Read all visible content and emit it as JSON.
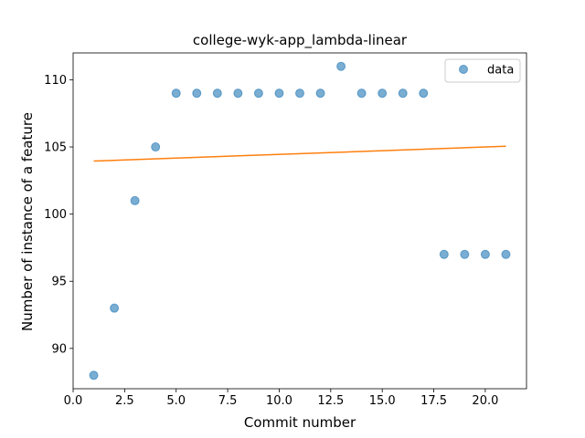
{
  "chart_data": {
    "type": "scatter",
    "title": "college-wyk-app_lambda-linear",
    "xlabel": "Commit number",
    "ylabel": "Number of instance of a feature",
    "xlim": [
      0,
      22
    ],
    "ylim": [
      87,
      112
    ],
    "xticks": [
      0,
      2.5,
      5,
      7.5,
      10,
      12.5,
      15,
      17.5,
      20
    ],
    "xtick_labels": [
      "0.0",
      "2.5",
      "5.0",
      "7.5",
      "10.0",
      "12.5",
      "15.0",
      "17.5",
      "20.0"
    ],
    "yticks": [
      90,
      95,
      100,
      105,
      110
    ],
    "ytick_labels": [
      "90",
      "95",
      "100",
      "105",
      "110"
    ],
    "grid": false,
    "legend": {
      "position": "top-right",
      "entries": [
        "data"
      ]
    },
    "series": [
      {
        "name": "data",
        "kind": "scatter",
        "color": "#1f77b4",
        "x": [
          1,
          2,
          3,
          4,
          5,
          6,
          7,
          8,
          9,
          10,
          11,
          12,
          13,
          14,
          15,
          16,
          17,
          18,
          19,
          20,
          21
        ],
        "y": [
          88,
          93,
          101,
          105,
          109,
          109,
          109,
          109,
          109,
          109,
          109,
          109,
          111,
          109,
          109,
          109,
          109,
          97,
          97,
          97,
          97
        ]
      },
      {
        "kind": "line",
        "color": "#ff7f0e",
        "x": [
          1,
          21
        ],
        "y": [
          103.95,
          105.05
        ]
      }
    ]
  }
}
